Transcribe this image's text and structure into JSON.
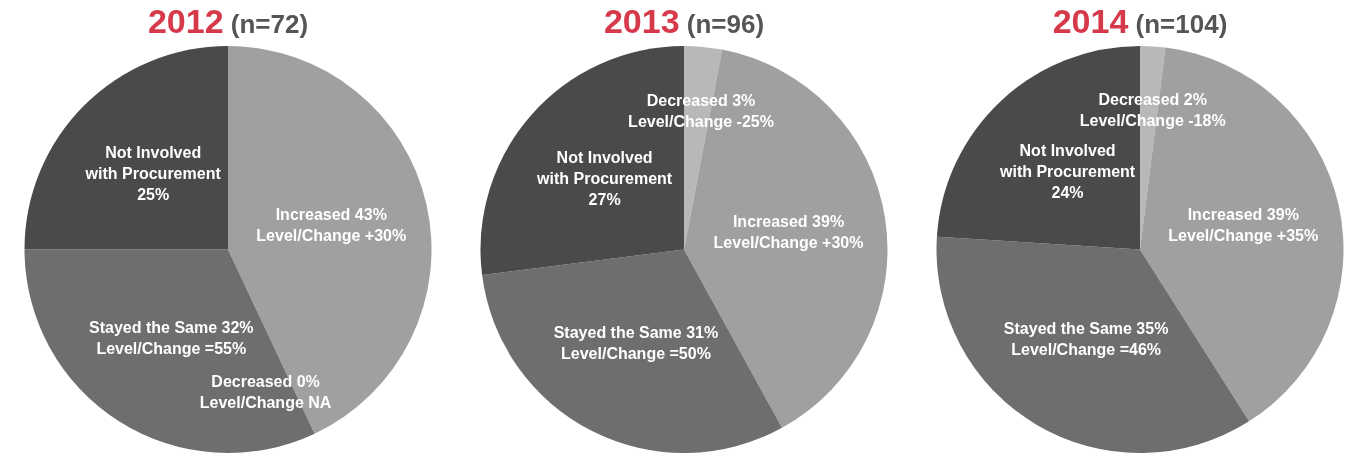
{
  "chart_data": [
    {
      "type": "pie",
      "title": "2012 (n=72)",
      "categories": [
        null,
        null,
        null,
        null
      ],
      "values": [
        43,
        0,
        32,
        25
      ],
      "colors": [
        "#a0a0a0",
        "#b8b8b8",
        "#6e6e6e",
        "#4a4a4a"
      ],
      "value_labels": [
        "Increased 43%\nLevel/Change +30%",
        "Decreased 0%\nLevel/Change NA",
        "Stayed the Same 32%\nLevel/Change =55%",
        "Not Involved\nwith Procurement\n25%"
      ]
    },
    {
      "type": "pie",
      "title": "2013 (n=96)",
      "categories": [
        null,
        null,
        null,
        null
      ],
      "values": [
        3,
        39,
        31,
        27
      ],
      "colors": [
        "#b8b8b8",
        "#a0a0a0",
        "#6e6e6e",
        "#4a4a4a"
      ],
      "value_labels": [
        "Decreased 3%\nLevel/Change -25%",
        "Increased 39%\nLevel/Change +30%",
        "Stayed the Same 31%\nLevel/Change =50%",
        "Not Involved\nwith Procurement\n27%"
      ]
    },
    {
      "type": "pie",
      "title": "2014 (n=104)",
      "categories": [
        null,
        null,
        null,
        null
      ],
      "values": [
        2,
        39,
        35,
        24
      ],
      "colors": [
        "#b8b8b8",
        "#a0a0a0",
        "#6e6e6e",
        "#4a4a4a"
      ],
      "value_labels": [
        "Decreased 2%\nLevel/Change -18%",
        "Increased 39%\nLevel/Change +35%",
        "Stayed the Same 35%\nLevel/Change =46%",
        "Not Involved\nwith Procurement\n24%"
      ]
    }
  ]
}
